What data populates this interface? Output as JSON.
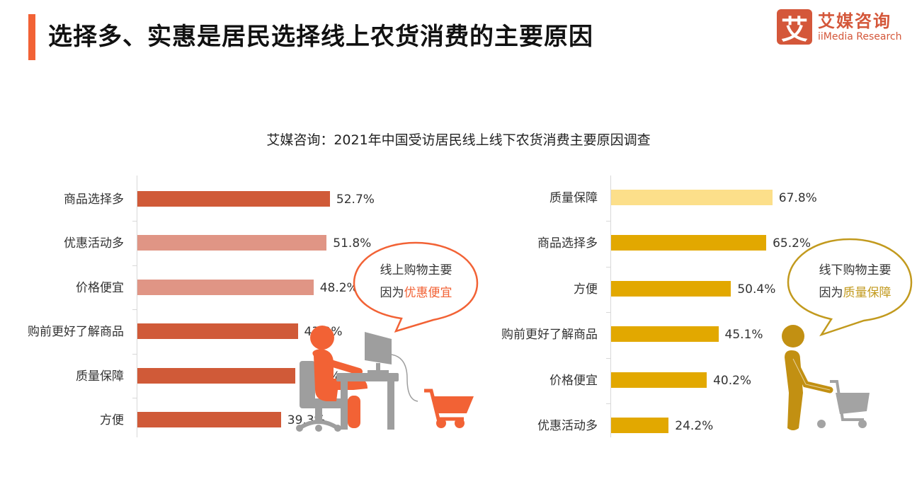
{
  "header": {
    "title": "选择多、实惠是居民选择线上农货消费的主要原因",
    "accent_color": "#f26235"
  },
  "logo": {
    "mark": "艾",
    "name_cn": "艾媒咨询",
    "name_en": "iiMedia Research",
    "color": "#d4573a"
  },
  "chart_data": [
    {
      "type": "bar",
      "orientation": "horizontal",
      "title": "艾媒咨询：2021年中国受访居民线上线下农货消费主要原因调查",
      "panel": "线上",
      "categories": [
        "商品选择多",
        "优惠活动多",
        "价格便宜",
        "购前更好了解商品",
        "质量保障",
        "方便"
      ],
      "values": [
        52.7,
        51.8,
        48.2,
        43.9,
        43.3,
        39.3
      ],
      "value_labels": [
        "52.7%",
        "51.8%",
        "48.2%",
        "43.9%",
        "43.3%",
        "39.3%"
      ],
      "colors": [
        "#d05a38",
        "#e09585",
        "#e09585",
        "#d05a38",
        "#d05a38",
        "#d05a38"
      ],
      "unit": "%",
      "grid": false,
      "callout": {
        "line1": "线上购物主要",
        "line2_prefix": "因为",
        "line2_highlight": "优惠便宜",
        "color": "#f26235"
      }
    },
    {
      "type": "bar",
      "orientation": "horizontal",
      "title": "艾媒咨询：2021年中国受访居民线上线下农货消费主要原因调查",
      "panel": "线下",
      "categories": [
        "质量保障",
        "商品选择多",
        "方便",
        "购前更好了解商品",
        "价格便宜",
        "优惠活动多"
      ],
      "values": [
        67.8,
        65.2,
        50.4,
        45.1,
        40.2,
        24.2
      ],
      "value_labels": [
        "67.8%",
        "65.2%",
        "50.4%",
        "45.1%",
        "40.2%",
        "24.2%"
      ],
      "colors": [
        "#fcdf8a",
        "#e2a800",
        "#e2a800",
        "#e2a800",
        "#e2a800",
        "#e2a800"
      ],
      "unit": "%",
      "grid": false,
      "callout": {
        "line1": "线下购物主要",
        "line2_prefix": "因为",
        "line2_highlight": "质量保障",
        "color": "#c29a1e"
      }
    }
  ],
  "subtitle": "艾媒咨询：2021年中国受访居民线上线下农货消费主要原因调查",
  "icons": {
    "left": "person-at-computer-icon",
    "left_cart": "shopping-cart-icon",
    "right": "person-pushing-cart-icon"
  }
}
